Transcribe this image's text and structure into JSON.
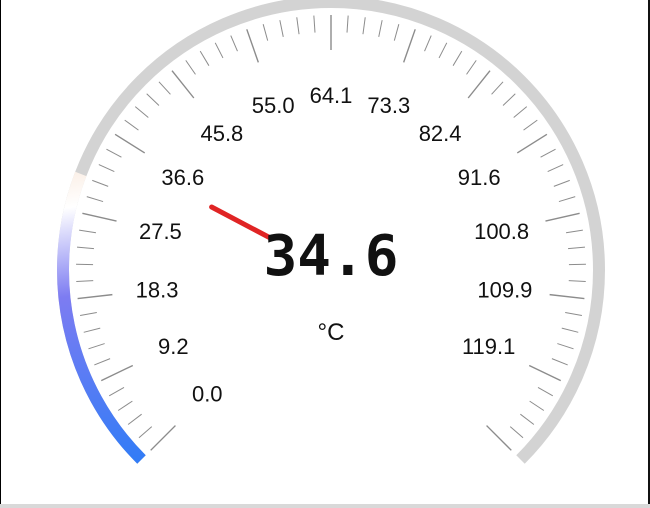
{
  "gauge": {
    "value": 34.6,
    "value_label": "34.6",
    "unit": "°C",
    "min": 0,
    "max": 128.3,
    "major_labels": [
      "0.0",
      "9.2",
      "18.3",
      "27.5",
      "36.6",
      "45.8",
      "55.0",
      "64.1",
      "73.3",
      "82.4",
      "91.6",
      "100.8",
      "109.9",
      "119.1"
    ],
    "colors": {
      "track": "#d3d3d3",
      "needle": "#e02424",
      "ticks": "#8c8c8c",
      "text": "#111111",
      "range_cold": "#2f7cf6",
      "range_mid": "#7d7cf2",
      "range_white": "#ffffff",
      "range_warm": "#f8e6d8"
    }
  }
}
